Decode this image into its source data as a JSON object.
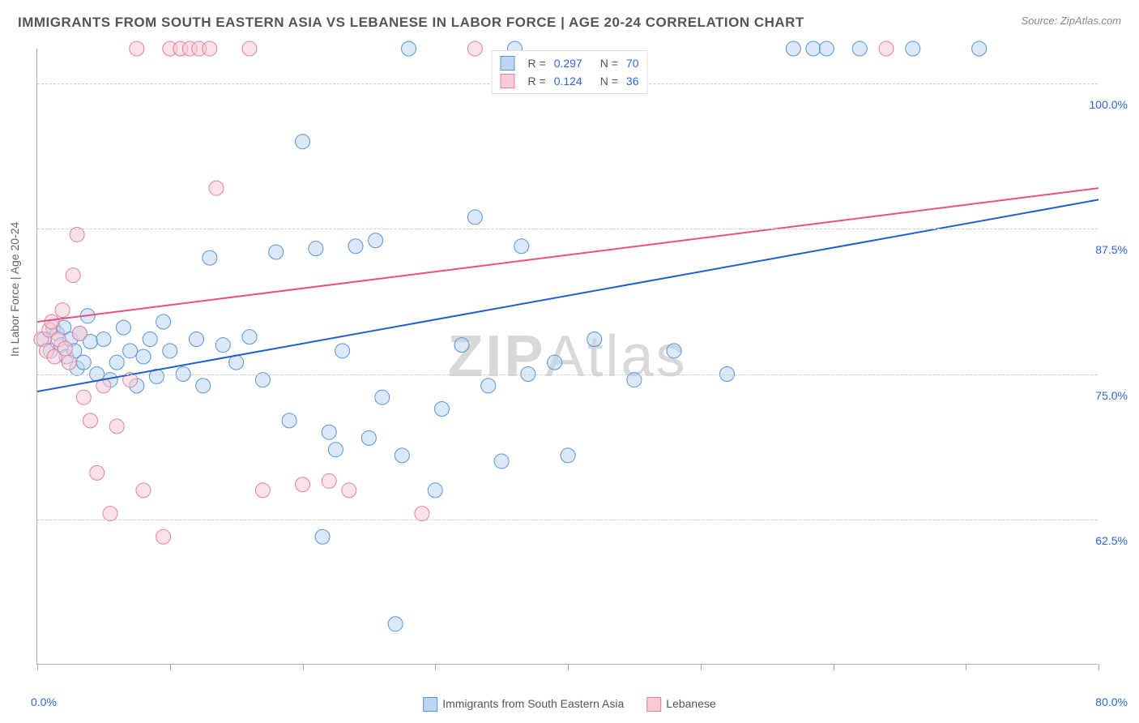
{
  "title": "IMMIGRANTS FROM SOUTH EASTERN ASIA VS LEBANESE IN LABOR FORCE | AGE 20-24 CORRELATION CHART",
  "source": "Source: ZipAtlas.com",
  "watermark_a": "ZIP",
  "watermark_b": "Atlas",
  "chart": {
    "type": "scatter",
    "background_color": "#ffffff",
    "grid_color": "#cccccc",
    "axis_color": "#aaaaaa",
    "tick_label_color": "#2968d8",
    "text_color": "#666666",
    "ylabel": "In Labor Force | Age 20-24",
    "xlim": [
      0,
      80
    ],
    "ylim": [
      50,
      103
    ],
    "xtick_positions": [
      0,
      10,
      20,
      30,
      40,
      50,
      60,
      70,
      80
    ],
    "ytick_positions": [
      62.5,
      75.0,
      87.5,
      100.0
    ],
    "ytick_labels": [
      "62.5%",
      "75.0%",
      "87.5%",
      "100.0%"
    ],
    "xaxis_min_label": "0.0%",
    "xaxis_max_label": "80.0%",
    "marker_radius": 9,
    "marker_opacity": 0.55,
    "line_width": 2,
    "label_fontsize": 14,
    "title_fontsize": 17
  },
  "legend_top": {
    "rows": [
      {
        "swatch_fill": "#bcd5f2",
        "swatch_stroke": "#5a93d8",
        "r_label": "R =",
        "r_value": "0.297",
        "n_label": "N =",
        "n_value": "70"
      },
      {
        "swatch_fill": "#f7cad6",
        "swatch_stroke": "#e47f9b",
        "r_label": "R =",
        "r_value": "0.124",
        "n_label": "N =",
        "n_value": "36"
      }
    ]
  },
  "legend_bottom": {
    "items": [
      {
        "swatch_fill": "#bcd5f2",
        "swatch_stroke": "#5a93d8",
        "label": "Immigrants from South Eastern Asia"
      },
      {
        "swatch_fill": "#f7cad6",
        "swatch_stroke": "#e47f9b",
        "label": "Lebanese"
      }
    ]
  },
  "series": [
    {
      "name": "Immigrants from South Eastern Asia",
      "color_fill": "#bcd5f2",
      "color_stroke": "#5a93d8",
      "trend_color": "#1f5fd0",
      "trend": {
        "x1": 0,
        "y1": 73.5,
        "x2": 80,
        "y2": 90.0
      },
      "points": [
        [
          0.5,
          78
        ],
        [
          1,
          77
        ],
        [
          1.2,
          79
        ],
        [
          1.5,
          78.5
        ],
        [
          1.8,
          77.5
        ],
        [
          2,
          79
        ],
        [
          2.2,
          76.5
        ],
        [
          2.5,
          78
        ],
        [
          2.8,
          77
        ],
        [
          3,
          75.5
        ],
        [
          3.2,
          78.5
        ],
        [
          3.5,
          76
        ],
        [
          3.8,
          80
        ],
        [
          4,
          77.8
        ],
        [
          4.5,
          75
        ],
        [
          5,
          78
        ],
        [
          5.5,
          74.5
        ],
        [
          6,
          76
        ],
        [
          6.5,
          79
        ],
        [
          7,
          77
        ],
        [
          7.5,
          74
        ],
        [
          8,
          76.5
        ],
        [
          8.5,
          78
        ],
        [
          9,
          74.8
        ],
        [
          9.5,
          79.5
        ],
        [
          10,
          77
        ],
        [
          11,
          75
        ],
        [
          12,
          78
        ],
        [
          12.5,
          74
        ],
        [
          13,
          85
        ],
        [
          14,
          77.5
        ],
        [
          15,
          76
        ],
        [
          16,
          78.2
        ],
        [
          17,
          74.5
        ],
        [
          18,
          85.5
        ],
        [
          19,
          71
        ],
        [
          20,
          95
        ],
        [
          21,
          85.8
        ],
        [
          21.5,
          61
        ],
        [
          22,
          70
        ],
        [
          22.5,
          68.5
        ],
        [
          23,
          77
        ],
        [
          24,
          86
        ],
        [
          25,
          69.5
        ],
        [
          25.5,
          86.5
        ],
        [
          26,
          73
        ],
        [
          27,
          53.5
        ],
        [
          27.5,
          68
        ],
        [
          28,
          103
        ],
        [
          30,
          65
        ],
        [
          30.5,
          72
        ],
        [
          32,
          77.5
        ],
        [
          33,
          88.5
        ],
        [
          34,
          74
        ],
        [
          35,
          67.5
        ],
        [
          36,
          103
        ],
        [
          36.5,
          86
        ],
        [
          37,
          75
        ],
        [
          39,
          76
        ],
        [
          40,
          68
        ],
        [
          42,
          78
        ],
        [
          45,
          74.5
        ],
        [
          48,
          77
        ],
        [
          52,
          75
        ],
        [
          57,
          103
        ],
        [
          58.5,
          103
        ],
        [
          59.5,
          103
        ],
        [
          62,
          103
        ],
        [
          66,
          103
        ],
        [
          71,
          103
        ]
      ]
    },
    {
      "name": "Lebanese",
      "color_fill": "#f7cad6",
      "color_stroke": "#e47f9b",
      "trend_color": "#e8517a",
      "trend": {
        "x1": 0,
        "y1": 79.5,
        "x2": 80,
        "y2": 91.0
      },
      "points": [
        [
          0.3,
          78
        ],
        [
          0.7,
          77
        ],
        [
          0.9,
          78.8
        ],
        [
          1.1,
          79.5
        ],
        [
          1.3,
          76.5
        ],
        [
          1.6,
          78
        ],
        [
          1.9,
          80.5
        ],
        [
          2.1,
          77.2
        ],
        [
          2.4,
          76
        ],
        [
          2.7,
          83.5
        ],
        [
          3,
          87
        ],
        [
          3.2,
          78.5
        ],
        [
          3.5,
          73
        ],
        [
          4,
          71
        ],
        [
          4.5,
          66.5
        ],
        [
          5,
          74
        ],
        [
          5.5,
          63
        ],
        [
          6,
          70.5
        ],
        [
          7,
          74.5
        ],
        [
          7.5,
          103
        ],
        [
          8,
          65
        ],
        [
          9.5,
          61
        ],
        [
          10,
          103
        ],
        [
          10.8,
          103
        ],
        [
          11.5,
          103
        ],
        [
          12.2,
          103
        ],
        [
          13,
          103
        ],
        [
          13.5,
          91
        ],
        [
          16,
          103
        ],
        [
          17,
          65
        ],
        [
          20,
          65.5
        ],
        [
          22,
          65.8
        ],
        [
          23.5,
          65
        ],
        [
          29,
          63
        ],
        [
          33,
          103
        ],
        [
          64,
          103
        ]
      ]
    }
  ]
}
